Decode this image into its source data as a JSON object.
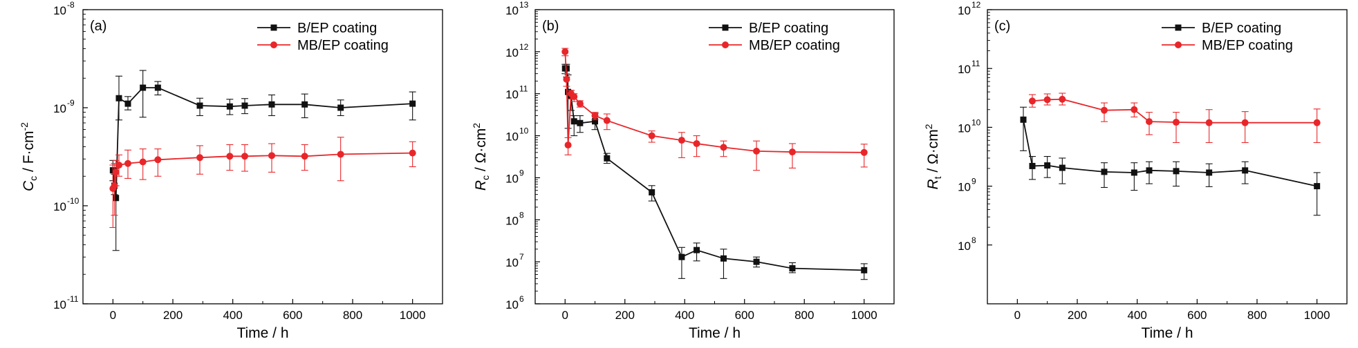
{
  "colors": {
    "b_ep": "#111111",
    "mb_ep": "#e8262a"
  },
  "chart_data": [
    {
      "panel": "(a)",
      "type": "line",
      "yscale": "log",
      "xlabel": "Time / h",
      "ylabel": "C_c / F·cm^-2",
      "ylabel_parts": {
        "sym": "C",
        "sub": "c",
        "unit": " / F·cm",
        "sup": "-2"
      },
      "xlim": [
        -100,
        1100
      ],
      "ylim": [
        1e-11,
        1e-08
      ],
      "xticks": [
        0,
        200,
        400,
        600,
        800,
        1000
      ],
      "xtick_labels": [
        "0",
        "200",
        "400",
        "600",
        "800",
        "1000"
      ],
      "ytick_exps": [
        -11,
        -10,
        -9,
        -8
      ],
      "ytick_mantissa": "10",
      "legend_position": "top-right",
      "series": [
        {
          "name": "B/EP coating",
          "marker": "square",
          "color_key": "b_ep",
          "x": [
            0,
            5,
            10,
            20,
            50,
            100,
            150,
            290,
            390,
            440,
            530,
            640,
            760,
            1000
          ],
          "y": [
            2.3e-10,
            1.6e-10,
            1.2e-10,
            1.25e-09,
            1.1e-09,
            1.6e-09,
            1.6e-09,
            1.05e-09,
            1.03e-09,
            1.05e-09,
            1.08e-09,
            1.08e-09,
            1e-09,
            1.1e-09
          ],
          "err_low": [
            1.8e-10,
            1.3e-10,
            3.5e-11,
            7.5e-10,
            9.5e-10,
            8e-10,
            1.35e-09,
            8.3e-10,
            8.5e-10,
            8.7e-10,
            8.3e-10,
            7.9e-10,
            8.3e-10,
            7.5e-10
          ],
          "err_high": [
            2.9e-10,
            2.1e-10,
            2.4e-10,
            2.1e-09,
            1.3e-09,
            2.4e-09,
            1.85e-09,
            1.25e-09,
            1.22e-09,
            1.24e-09,
            1.35e-09,
            1.38e-09,
            1.2e-09,
            1.45e-09
          ]
        },
        {
          "name": "MB/EP coating",
          "marker": "circle",
          "color_key": "mb_ep",
          "x": [
            0,
            5,
            10,
            20,
            50,
            100,
            150,
            290,
            390,
            440,
            530,
            640,
            760,
            1000
          ],
          "y": [
            1.5e-10,
            1.6e-10,
            2.2e-10,
            2.6e-10,
            2.7e-10,
            2.8e-10,
            2.95e-10,
            3.1e-10,
            3.2e-10,
            3.2e-10,
            3.25e-10,
            3.2e-10,
            3.35e-10,
            3.45e-10
          ],
          "err_low": [
            6e-11,
            8e-11,
            1.6e-10,
            2e-10,
            1.9e-10,
            1.85e-10,
            2e-10,
            2.1e-10,
            2.3e-10,
            2.25e-10,
            2.2e-10,
            2.3e-10,
            1.8e-10,
            2.5e-10
          ],
          "err_high": [
            2.6e-10,
            2.7e-10,
            2.9e-10,
            3.3e-10,
            3.7e-10,
            3.8e-10,
            3.8e-10,
            4.1e-10,
            4.2e-10,
            4.2e-10,
            4.3e-10,
            4.2e-10,
            5e-10,
            4.5e-10
          ]
        }
      ]
    },
    {
      "panel": "(b)",
      "type": "line",
      "yscale": "log",
      "xlabel": "Time / h",
      "ylabel": "R_c / Ω·cm^2",
      "ylabel_parts": {
        "sym": "R",
        "sub": "c",
        "unit": " / Ω·cm",
        "sup": "2"
      },
      "xlim": [
        -100,
        1100
      ],
      "ylim": [
        1000000.0,
        10000000000000.0
      ],
      "xticks": [
        0,
        200,
        400,
        600,
        800,
        1000
      ],
      "xtick_labels": [
        "0",
        "200",
        "400",
        "600",
        "800",
        "1000"
      ],
      "ytick_exps": [
        6,
        7,
        8,
        9,
        10,
        11,
        12,
        13
      ],
      "ytick_mantissa": "10",
      "legend_position": "top-right",
      "series": [
        {
          "name": "B/EP coating",
          "marker": "square",
          "color_key": "b_ep",
          "x": [
            0,
            5,
            10,
            20,
            30,
            50,
            100,
            140,
            290,
            390,
            440,
            530,
            640,
            760,
            1000
          ],
          "y": [
            400000000000.0,
            400000000000.0,
            110000000000.0,
            90000000000.0,
            22000000000.0,
            20000000000.0,
            22000000000.0,
            2900000000.0,
            450000000.0,
            13000000.0,
            19000000.0,
            12000000.0,
            10000000.0,
            7000000.0,
            6300000.0
          ],
          "err_low": [
            300000000000.0,
            250000000000.0,
            15000000000.0,
            40000000000.0,
            10000000000.0,
            12000000000.0,
            14000000000.0,
            2200000000.0,
            280000000.0,
            4000000.0,
            10500000.0,
            4000000.0,
            7500000.0,
            5500000.0,
            3800000.0
          ],
          "err_high": [
            500000000000.0,
            500000000000.0,
            280000000000.0,
            120000000000.0,
            30000000000.0,
            30000000000.0,
            34000000000.0,
            3800000000.0,
            650000000.0,
            22000000.0,
            28000000.0,
            20000000.0,
            13000000.0,
            9500000.0,
            9000000.0
          ]
        },
        {
          "name": "MB/EP coating",
          "marker": "circle",
          "color_key": "mb_ep",
          "x": [
            0,
            5,
            10,
            20,
            30,
            50,
            100,
            140,
            290,
            390,
            440,
            530,
            640,
            760,
            1000
          ],
          "y": [
            1000000000000.0,
            220000000000.0,
            6000000000.0,
            100000000000.0,
            85000000000.0,
            58000000000.0,
            30000000000.0,
            23000000000.0,
            10000000000.0,
            7800000000.0,
            6500000000.0,
            5300000000.0,
            4300000000.0,
            4100000000.0,
            4000000000.0
          ],
          "err_low": [
            800000000000.0,
            150000000000.0,
            3500000000.0,
            75000000000.0,
            65000000000.0,
            48000000000.0,
            24000000000.0,
            14000000000.0,
            7000000000.0,
            3000000000.0,
            3200000000.0,
            3200000000.0,
            1500000000.0,
            1700000000.0,
            1800000000.0
          ],
          "err_high": [
            1200000000000.0,
            300000000000.0,
            9000000000.0,
            120000000000.0,
            100000000000.0,
            68000000000.0,
            36000000000.0,
            33000000000.0,
            13000000000.0,
            12000000000.0,
            10000000000.0,
            7500000000.0,
            7500000000.0,
            6500000000.0,
            6300000000.0
          ]
        }
      ]
    },
    {
      "panel": "(c)",
      "type": "line",
      "yscale": "log",
      "xlabel": "Time / h",
      "ylabel": "R_t / Ω·cm^2",
      "ylabel_parts": {
        "sym": "R",
        "sub": "t",
        "unit": " / Ω·cm",
        "sup": "2"
      },
      "xlim": [
        -100,
        1100
      ],
      "ylim": [
        10000000.0,
        1000000000000.0
      ],
      "xticks": [
        0,
        200,
        400,
        600,
        800,
        1000
      ],
      "xtick_labels": [
        "0",
        "200",
        "400",
        "600",
        "800",
        "1000"
      ],
      "ytick_exps": [
        8,
        9,
        10,
        11,
        12
      ],
      "ytick_mantissa": "10",
      "legend_position": "top-right",
      "series": [
        {
          "name": "B/EP coating",
          "marker": "square",
          "color_key": "b_ep",
          "x": [
            20,
            50,
            100,
            150,
            290,
            390,
            440,
            530,
            640,
            760,
            1000
          ],
          "y": [
            13500000000.0,
            2200000000.0,
            2250000000.0,
            2050000000.0,
            1750000000.0,
            1700000000.0,
            1850000000.0,
            1800000000.0,
            1700000000.0,
            1850000000.0,
            1000000000.0
          ],
          "err_low": [
            4000000000.0,
            1300000000.0,
            1400000000.0,
            1100000000.0,
            950000000.0,
            850000000.0,
            1100000000.0,
            1000000000.0,
            980000000.0,
            1100000000.0,
            320000000.0
          ],
          "err_high": [
            22000000000.0,
            3200000000.0,
            3200000000.0,
            3000000000.0,
            2500000000.0,
            2500000000.0,
            2600000000.0,
            2600000000.0,
            2400000000.0,
            2600000000.0,
            1700000000.0
          ]
        },
        {
          "name": "MB/EP coating",
          "marker": "circle",
          "color_key": "mb_ep",
          "x": [
            50,
            100,
            150,
            290,
            390,
            440,
            530,
            640,
            760,
            1000
          ],
          "y": [
            28000000000.0,
            29500000000.0,
            30000000000.0,
            19500000000.0,
            20000000000.0,
            12500000000.0,
            12200000000.0,
            12000000000.0,
            12000000000.0,
            12000000000.0
          ],
          "err_low": [
            22000000000.0,
            24000000000.0,
            24000000000.0,
            12500000000.0,
            15000000000.0,
            7500000000.0,
            5500000000.0,
            5500000000.0,
            5500000000.0,
            5500000000.0
          ],
          "err_high": [
            36000000000.0,
            37000000000.0,
            38000000000.0,
            26000000000.0,
            26000000000.0,
            18000000000.0,
            18000000000.0,
            20000000000.0,
            18500000000.0,
            20500000000.0
          ]
        }
      ]
    }
  ]
}
